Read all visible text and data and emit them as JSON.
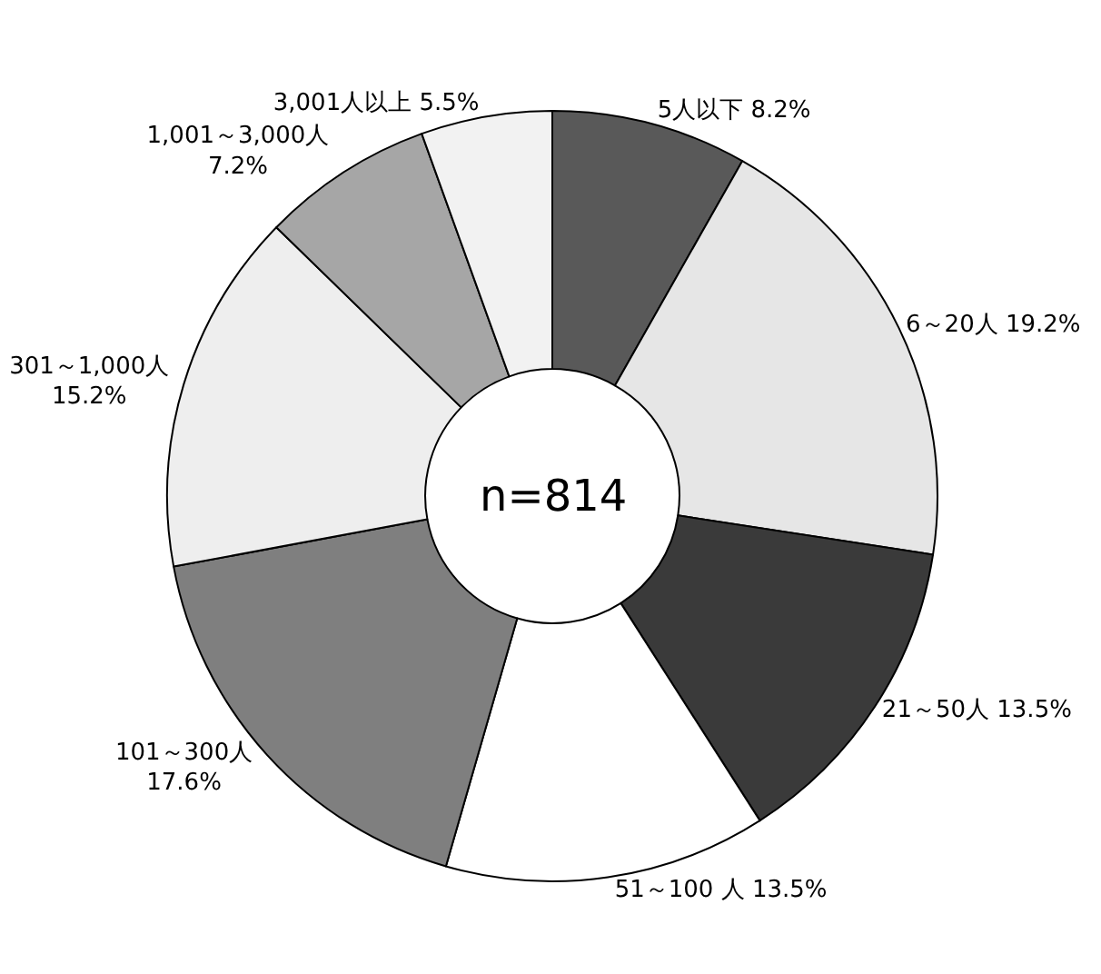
{
  "chart_data": {
    "type": "donut",
    "categories": [
      "5人以下",
      "6～20人",
      "21～50人",
      "51～100 人",
      "101～300人",
      "301～1,000人",
      "1,001～3,000人",
      "3,001人以上"
    ],
    "values": [
      8.2,
      19.2,
      13.5,
      13.5,
      17.6,
      15.2,
      7.2,
      5.5
    ],
    "value_labels": [
      "8.2%",
      "19.2%",
      "13.5%",
      "13.5%",
      "17.6%",
      "15.2%",
      "7.2%",
      "5.5%"
    ],
    "colors": [
      "#595959",
      "#e6e6e6",
      "#3a3a3a",
      "#ffffff",
      "#7f7f7f",
      "#eeeeee",
      "#a6a6a6",
      "#f2f2f2"
    ],
    "annotations": [
      "n=814"
    ],
    "legend": false
  }
}
